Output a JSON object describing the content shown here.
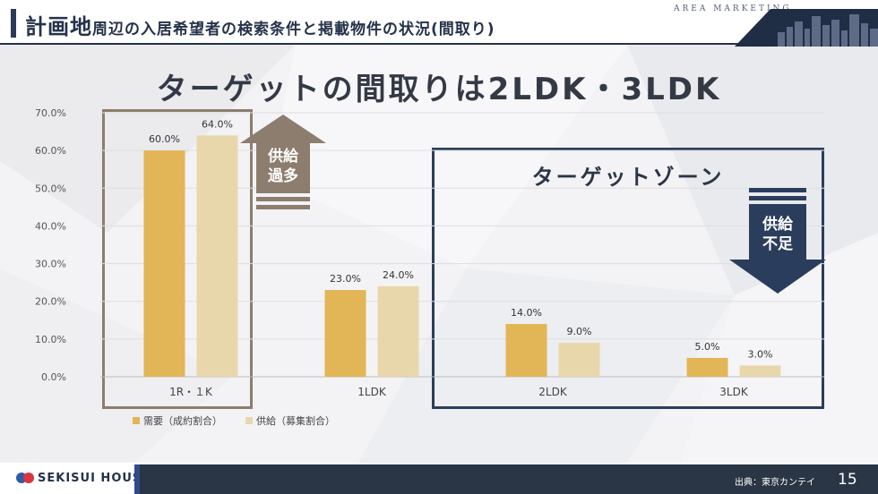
{
  "header": {
    "title_big": "計画地",
    "title_rest": "周辺の入居希望者の検索条件と掲載物件の状況(間取り)",
    "area_label": "AREA MARKETING"
  },
  "main_title": "ターゲットの間取りは2LDK・3LDK",
  "annotations": {
    "oversupply_line1": "供給",
    "oversupply_line2": "過多",
    "undersupply_line1": "供給",
    "undersupply_line2": "不足",
    "target_zone": "ターゲットゾーン"
  },
  "colors": {
    "demand": "#e2b557",
    "supply": "#e9d7ac",
    "navy": "#2b3d5c",
    "taupe": "#8c7d6e"
  },
  "chart_data": {
    "type": "bar",
    "categories": [
      "1R・１K",
      "1LDK",
      "2LDK",
      "3LDK"
    ],
    "series": [
      {
        "name": "需要（成約割合）",
        "values": [
          60.0,
          23.0,
          14.0,
          5.0
        ]
      },
      {
        "name": "供給（募集割合）",
        "values": [
          64.0,
          24.0,
          9.0,
          3.0
        ]
      }
    ],
    "value_labels": [
      [
        "60.0%",
        "23.0%",
        "14.0%",
        "5.0%"
      ],
      [
        "64.0%",
        "24.0%",
        "9.0%",
        "3.0%"
      ]
    ],
    "yticks": [
      "0.0%",
      "10.0%",
      "20.0%",
      "30.0%",
      "40.0%",
      "50.0%",
      "60.0%",
      "70.0%"
    ],
    "ylim": [
      0,
      70
    ],
    "grid": true,
    "legend_position": "bottom-left"
  },
  "footer": {
    "brand": "SEKISUI HOUSE",
    "source": "出典：東京カンテイ",
    "page": "15"
  }
}
